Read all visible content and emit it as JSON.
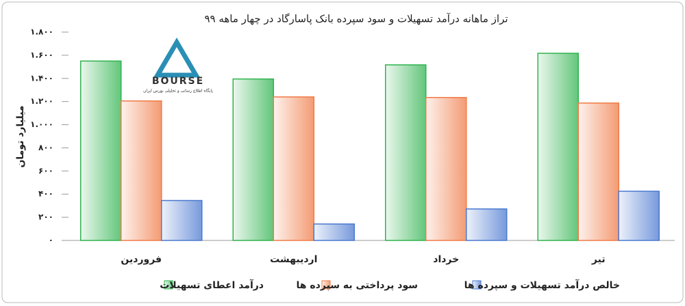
{
  "chart_data": {
    "type": "bar",
    "title": "تراز ماهانه درآمد تسهیلات و سود سپرده بانک پاسارگاد در چهار ماهه ۹۹",
    "y_label": "میلیارد تومان",
    "logo": {
      "text": "BOURSE",
      "subtitle": "پایگاه اطلاع رسانی و تحلیلی بورس ایران"
    },
    "categories": [
      "فروردین",
      "اردیبهشت",
      "خرداد",
      "تیر"
    ],
    "series": [
      {
        "name": "درآمد اعطای تسهیلات",
        "color": "#2fb34f",
        "values": [
          1550,
          1395,
          1517,
          1617
        ]
      },
      {
        "name": "سود پرداختی به سپرده ها",
        "color": "#f07a45",
        "values": [
          1205,
          1240,
          1235,
          1187
        ]
      },
      {
        "name": "خالص درآمد تسهیلات و سپرده ها",
        "color": "#4a78d0",
        "values": [
          345,
          142,
          272,
          425
        ]
      }
    ],
    "ylim": [
      0,
      1800
    ],
    "yticks": [
      {
        "value": 0,
        "label": "۰"
      },
      {
        "value": 200,
        "label": "۲۰۰"
      },
      {
        "value": 400,
        "label": "۴۰۰"
      },
      {
        "value": 600,
        "label": "۶۰۰"
      },
      {
        "value": 800,
        "label": "۸۰۰"
      },
      {
        "value": 1000,
        "label": "۱.۰۰۰"
      },
      {
        "value": 1200,
        "label": "۱.۲۰۰"
      },
      {
        "value": 1400,
        "label": "۱.۴۰۰"
      },
      {
        "value": 1600,
        "label": "۱.۶۰۰"
      },
      {
        "value": 1800,
        "label": "۱.۸۰۰"
      }
    ],
    "grid": false
  }
}
